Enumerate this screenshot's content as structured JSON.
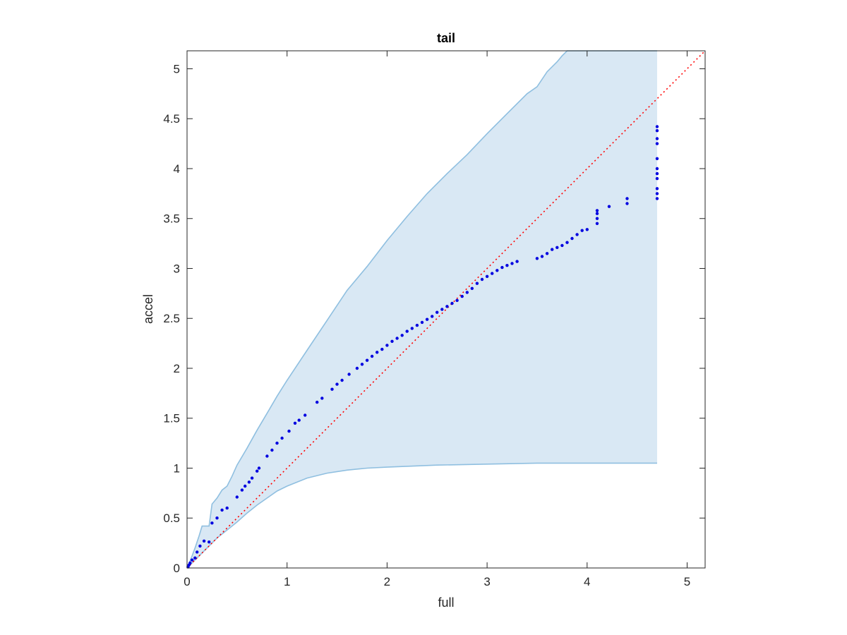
{
  "chart_data": {
    "type": "scatter",
    "title": "tail",
    "xlabel": "full",
    "ylabel": "accel",
    "xlim": [
      0,
      5.18
    ],
    "ylim": [
      0,
      5.18
    ],
    "xticks": [
      0,
      1,
      2,
      3,
      4,
      5
    ],
    "xtick_labels": [
      "0",
      "1",
      "2",
      "3",
      "4",
      "5"
    ],
    "yticks": [
      0,
      0.5,
      1,
      1.5,
      2,
      2.5,
      3,
      3.5,
      4,
      4.5,
      5
    ],
    "ytick_labels": [
      "0",
      "0.5",
      "1",
      "1.5",
      "2",
      "2.5",
      "3",
      "3.5",
      "4",
      "4.5",
      "5"
    ],
    "grid": false,
    "colors": {
      "band_fill": "#d9e8f4",
      "band_edge": "#8fbfe0",
      "points": "#0000e0",
      "reference_line": "#ff0000",
      "axes": "#262626"
    },
    "band": {
      "upper": [
        [
          0,
          0
        ],
        [
          0.05,
          0.12
        ],
        [
          0.08,
          0.2
        ],
        [
          0.12,
          0.32
        ],
        [
          0.15,
          0.42
        ],
        [
          0.22,
          0.42
        ],
        [
          0.25,
          0.64
        ],
        [
          0.3,
          0.7
        ],
        [
          0.35,
          0.78
        ],
        [
          0.4,
          0.82
        ],
        [
          0.45,
          0.92
        ],
        [
          0.5,
          1.03
        ],
        [
          0.6,
          1.2
        ],
        [
          0.7,
          1.38
        ],
        [
          0.8,
          1.55
        ],
        [
          0.9,
          1.72
        ],
        [
          1.0,
          1.88
        ],
        [
          1.2,
          2.18
        ],
        [
          1.4,
          2.48
        ],
        [
          1.6,
          2.78
        ],
        [
          1.8,
          3.02
        ],
        [
          2.0,
          3.28
        ],
        [
          2.2,
          3.52
        ],
        [
          2.4,
          3.75
        ],
        [
          2.6,
          3.95
        ],
        [
          2.8,
          4.14
        ],
        [
          3.0,
          4.35
        ],
        [
          3.2,
          4.55
        ],
        [
          3.4,
          4.75
        ],
        [
          3.5,
          4.82
        ],
        [
          3.6,
          4.97
        ],
        [
          3.7,
          5.07
        ],
        [
          3.75,
          5.13
        ],
        [
          3.8,
          5.18
        ],
        [
          4.7,
          5.18
        ]
      ],
      "lower": [
        [
          0,
          0
        ],
        [
          0.1,
          0.1
        ],
        [
          0.2,
          0.2
        ],
        [
          0.3,
          0.3
        ],
        [
          0.4,
          0.38
        ],
        [
          0.5,
          0.46
        ],
        [
          0.6,
          0.55
        ],
        [
          0.7,
          0.63
        ],
        [
          0.8,
          0.7
        ],
        [
          0.9,
          0.77
        ],
        [
          1.0,
          0.82
        ],
        [
          1.2,
          0.9
        ],
        [
          1.4,
          0.95
        ],
        [
          1.6,
          0.98
        ],
        [
          1.8,
          1.0
        ],
        [
          2.0,
          1.01
        ],
        [
          2.5,
          1.03
        ],
        [
          3.0,
          1.04
        ],
        [
          3.5,
          1.05
        ],
        [
          4.0,
          1.05
        ],
        [
          4.7,
          1.05
        ]
      ],
      "end_x": 4.7
    },
    "reference_line": {
      "x": [
        0,
        5.18
      ],
      "y": [
        0,
        5.18
      ]
    },
    "series": [
      {
        "points": [
          [
            0.01,
            0.01
          ],
          [
            0.02,
            0.03
          ],
          [
            0.03,
            0.05
          ],
          [
            0.05,
            0.08
          ],
          [
            0.08,
            0.1
          ],
          [
            0.1,
            0.16
          ],
          [
            0.13,
            0.22
          ],
          [
            0.17,
            0.27
          ],
          [
            0.22,
            0.26
          ],
          [
            0.25,
            0.45
          ],
          [
            0.3,
            0.5
          ],
          [
            0.35,
            0.58
          ],
          [
            0.4,
            0.6
          ],
          [
            0.5,
            0.71
          ],
          [
            0.55,
            0.78
          ],
          [
            0.58,
            0.82
          ],
          [
            0.62,
            0.86
          ],
          [
            0.65,
            0.9
          ],
          [
            0.7,
            0.97
          ],
          [
            0.72,
            1.0
          ],
          [
            0.8,
            1.12
          ],
          [
            0.85,
            1.18
          ],
          [
            0.9,
            1.25
          ],
          [
            0.95,
            1.3
          ],
          [
            1.02,
            1.37
          ],
          [
            1.08,
            1.45
          ],
          [
            1.12,
            1.48
          ],
          [
            1.18,
            1.53
          ],
          [
            1.3,
            1.66
          ],
          [
            1.35,
            1.7
          ],
          [
            1.45,
            1.79
          ],
          [
            1.5,
            1.84
          ],
          [
            1.55,
            1.88
          ],
          [
            1.62,
            1.94
          ],
          [
            1.7,
            2.0
          ],
          [
            1.75,
            2.04
          ],
          [
            1.8,
            2.08
          ],
          [
            1.85,
            2.12
          ],
          [
            1.9,
            2.16
          ],
          [
            1.95,
            2.19
          ],
          [
            2.0,
            2.23
          ],
          [
            2.05,
            2.27
          ],
          [
            2.1,
            2.3
          ],
          [
            2.15,
            2.33
          ],
          [
            2.2,
            2.37
          ],
          [
            2.25,
            2.4
          ],
          [
            2.3,
            2.43
          ],
          [
            2.35,
            2.46
          ],
          [
            2.4,
            2.49
          ],
          [
            2.45,
            2.52
          ],
          [
            2.5,
            2.56
          ],
          [
            2.55,
            2.59
          ],
          [
            2.6,
            2.62
          ],
          [
            2.65,
            2.65
          ],
          [
            2.7,
            2.68
          ],
          [
            2.75,
            2.72
          ],
          [
            2.8,
            2.76
          ],
          [
            2.85,
            2.8
          ],
          [
            2.9,
            2.85
          ],
          [
            2.95,
            2.89
          ],
          [
            3.0,
            2.92
          ],
          [
            3.05,
            2.95
          ],
          [
            3.1,
            2.98
          ],
          [
            3.15,
            3.01
          ],
          [
            3.2,
            3.03
          ],
          [
            3.25,
            3.05
          ],
          [
            3.3,
            3.07
          ],
          [
            3.5,
            3.1
          ],
          [
            3.55,
            3.12
          ],
          [
            3.6,
            3.15
          ],
          [
            3.65,
            3.19
          ],
          [
            3.7,
            3.21
          ],
          [
            3.75,
            3.23
          ],
          [
            3.8,
            3.26
          ],
          [
            3.85,
            3.3
          ],
          [
            3.9,
            3.34
          ],
          [
            3.95,
            3.38
          ],
          [
            4.0,
            3.39
          ],
          [
            4.1,
            3.45
          ],
          [
            4.1,
            3.5
          ],
          [
            4.1,
            3.55
          ],
          [
            4.1,
            3.58
          ],
          [
            4.22,
            3.62
          ],
          [
            4.4,
            3.65
          ],
          [
            4.4,
            3.7
          ],
          [
            4.7,
            3.7
          ],
          [
            4.7,
            3.75
          ],
          [
            4.7,
            3.8
          ],
          [
            4.7,
            3.9
          ],
          [
            4.7,
            3.95
          ],
          [
            4.7,
            4.0
          ],
          [
            4.7,
            4.1
          ],
          [
            4.7,
            4.25
          ],
          [
            4.7,
            4.3
          ],
          [
            4.7,
            4.38
          ],
          [
            4.7,
            4.42
          ]
        ]
      }
    ]
  }
}
